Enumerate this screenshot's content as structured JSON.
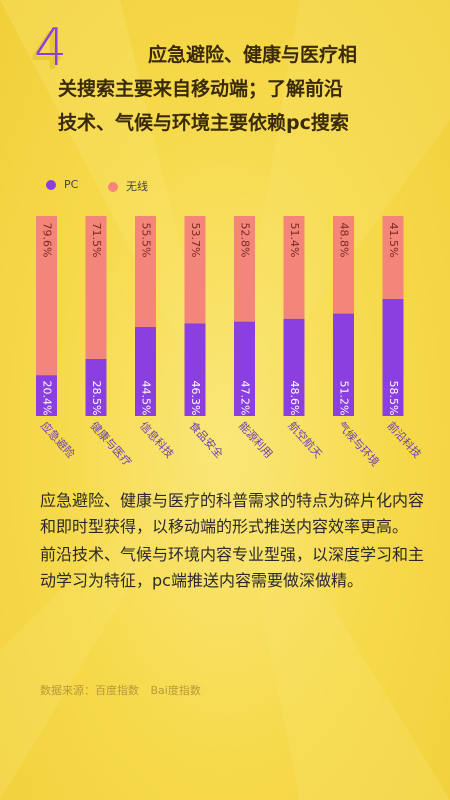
{
  "header": {
    "number": "4",
    "line1": "应急避险、健康与医疗相",
    "line2": "关搜索主要来自移动端；了解前沿",
    "line3": "技术、气候与环境主要依赖pc搜索"
  },
  "chart_data": {
    "type": "bar",
    "stacked": true,
    "categories": [
      "应急避险",
      "健康与医疗",
      "信息科技",
      "食品安全",
      "能源利用",
      "航空航天",
      "气候与环境",
      "前沿科技"
    ],
    "series": [
      {
        "name": "PC",
        "color": "#8b3fe0",
        "values": [
          20.4,
          28.5,
          44.5,
          46.3,
          47.2,
          48.6,
          51.2,
          58.5
        ],
        "labels": [
          "20.4%",
          "28.5%",
          "44.5%",
          "46.3%",
          "47.2%",
          "48.6%",
          "51.2%",
          "58.5%"
        ]
      },
      {
        "name": "无线",
        "color": "#f4857a",
        "values": [
          79.6,
          71.5,
          55.5,
          53.7,
          52.8,
          51.4,
          48.8,
          41.5
        ],
        "labels": [
          "79.6%",
          "71.5%",
          "55.5%",
          "53.7%",
          "52.8%",
          "51.4%",
          "48.8%",
          "41.5%"
        ]
      }
    ],
    "ylim": [
      0,
      100
    ],
    "legend": "top-left",
    "grid": false
  },
  "body": {
    "p1": "应急避险、健康与医疗的科普需求的特点为碎片化内容和即时型获得，以移动端的形式推送内容效率更高。",
    "p2": "前沿技术、气候与环境内容专业型强，以深度学习和主动学习为特征，pc端推送内容需要做深做精。"
  },
  "footer": {
    "source": "数据来源：百度指数",
    "logo_text": "Bai度指数"
  }
}
